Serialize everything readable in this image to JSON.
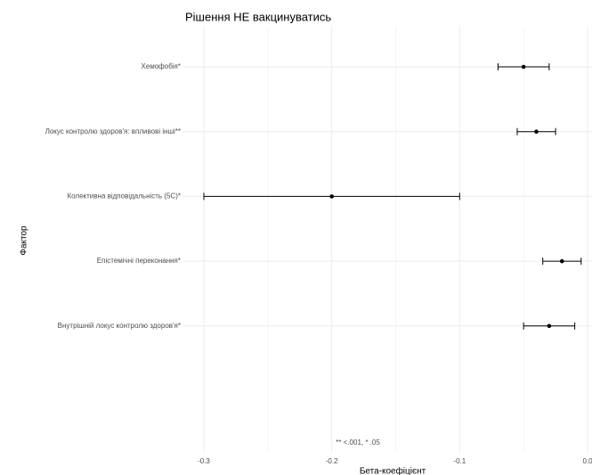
{
  "chart_data": {
    "type": "forest",
    "title": "Рішення НЕ вакцинуватись",
    "xlabel": "Бета-коефіцієнт",
    "ylabel": "Фактор",
    "annotation": "** <.001, * .05",
    "categories": [
      "Хемофобія*",
      "Локус контролю здоров'я: впливові інші**",
      "Колективна відповідальність (5С)*",
      "Епістемічні переконання*",
      "Внутрішній локус контролю здоров'я*"
    ],
    "values": [
      -0.05,
      -0.04,
      -0.2,
      -0.02,
      -0.03
    ],
    "lower": [
      -0.07,
      -0.055,
      -0.3,
      -0.035,
      -0.05
    ],
    "upper": [
      -0.03,
      -0.025,
      -0.1,
      -0.005,
      -0.01
    ],
    "color": "#000000",
    "xlim": [
      -0.3,
      0
    ],
    "xticks": [
      -0.3,
      -0.2,
      -0.1,
      {
        "value": 0,
        "label": "0.0"
      }
    ],
    "xminor": [
      -0.25,
      -0.15,
      -0.05
    ],
    "grid": true
  }
}
